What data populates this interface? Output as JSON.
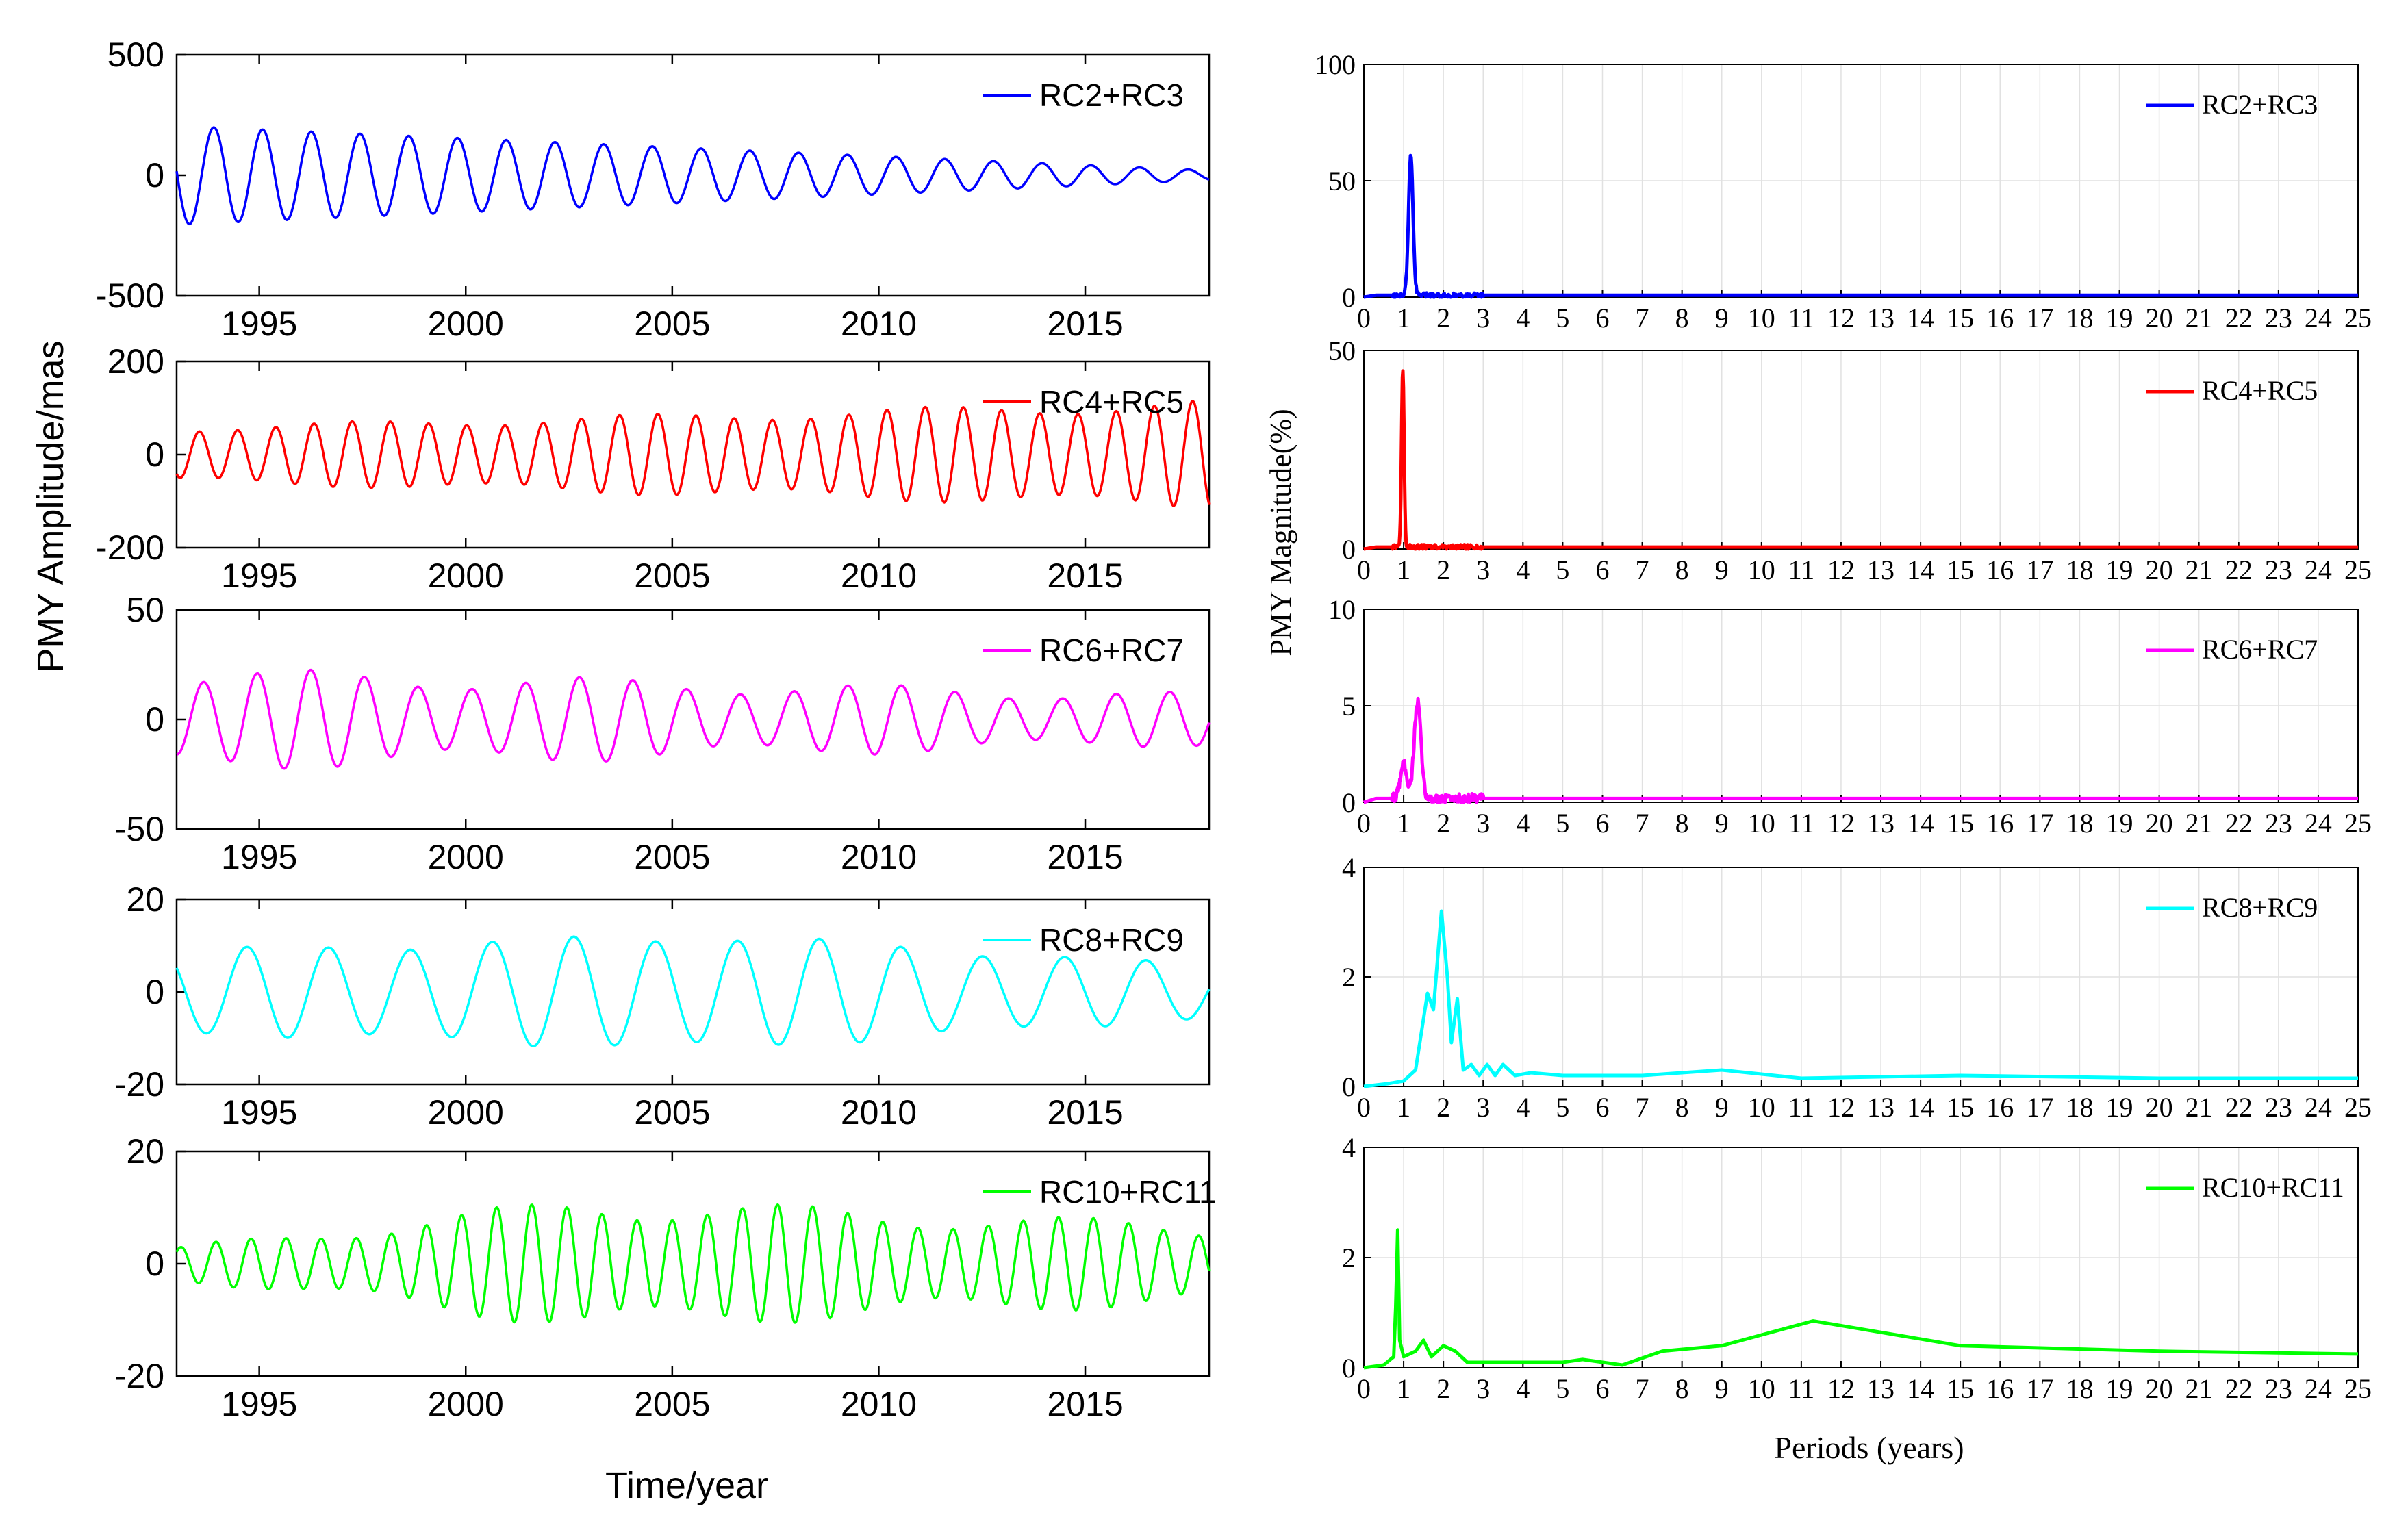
{
  "figure": {
    "left_ylabel": "PMY Amplitude/mas",
    "left_xlabel": "Time/year",
    "right_ylabel": "PMY Magnitude(%)",
    "right_xlabel": "Periods (years)"
  },
  "chart_data": [
    {
      "type": "line",
      "name": "RC2+RC3 time series",
      "series": [
        {
          "name": "RC2+RC3",
          "color": "#0000ff"
        }
      ],
      "xlim": [
        1993,
        2018
      ],
      "ylim": [
        -500,
        500
      ],
      "yticks": [
        -500,
        0,
        500
      ],
      "xticks": [
        1995,
        2000,
        2005,
        2010,
        2015
      ],
      "signal": {
        "period_years": 1.18,
        "amp_start": 205,
        "amp_end": 20,
        "amp_peak_year": 1995.2,
        "phase_year": 1993.9,
        "sign": 1,
        "noise": 0
      },
      "xlabel": "",
      "ylabel": "",
      "legend": "top-right"
    },
    {
      "type": "line",
      "name": "RC4+RC5 time series",
      "series": [
        {
          "name": "RC4+RC5",
          "color": "#ff0000"
        }
      ],
      "xlim": [
        1993,
        2018
      ],
      "ylim": [
        -200,
        200
      ],
      "yticks": [
        -200,
        0,
        200
      ],
      "xticks": [
        1995,
        2000,
        2005,
        2010,
        2015
      ],
      "signal": {
        "period_years": 0.925,
        "amp_start": 55,
        "amp_end": 105,
        "phase_year": 1993.55,
        "sign": 1,
        "noise": 0.2
      },
      "xlabel": "",
      "ylabel": "",
      "legend": "top-right"
    },
    {
      "type": "line",
      "name": "RC6+RC7 time series",
      "series": [
        {
          "name": "RC6+RC7",
          "color": "#ff00ff"
        }
      ],
      "xlim": [
        1993,
        2018
      ],
      "ylim": [
        -50,
        50
      ],
      "yticks": [
        -50,
        0,
        50
      ],
      "xticks": [
        1995,
        2000,
        2005,
        2010,
        2015
      ],
      "signal": {
        "period_years": 1.3,
        "amp_start": 20,
        "amp_end": 10,
        "phase_year": 1993.65,
        "sign": 1,
        "noise": 0.35
      },
      "xlabel": "",
      "ylabel": "",
      "legend": "top-right"
    },
    {
      "type": "line",
      "name": "RC8+RC9 time series",
      "series": [
        {
          "name": "RC8+RC9",
          "color": "#00ffff"
        }
      ],
      "xlim": [
        1993,
        2018
      ],
      "ylim": [
        -20,
        20
      ],
      "yticks": [
        -20,
        0,
        20
      ],
      "xticks": [
        1995,
        2000,
        2005,
        2010,
        2015
      ],
      "signal": {
        "period_years": 1.98,
        "amp_start": 8.5,
        "amp_end": 5.5,
        "amp_peak_year": 2006,
        "amp_peak": 12,
        "phase_year": 1994.7,
        "sign": 1,
        "noise": 0.15
      },
      "xlabel": "",
      "ylabel": "",
      "legend": "top-right"
    },
    {
      "type": "line",
      "name": "RC10+RC11 time series",
      "series": [
        {
          "name": "RC10+RC11",
          "color": "#00ff00"
        }
      ],
      "xlim": [
        1993,
        2018
      ],
      "ylim": [
        -20,
        20
      ],
      "yticks": [
        -20,
        0,
        20
      ],
      "xticks": [
        1995,
        2000,
        2005,
        2010,
        2015
      ],
      "signal": {
        "period_years": 0.85,
        "amp_start": 2.5,
        "amp_end": 6,
        "amp_peak_year": 2003,
        "amp_peak": 10,
        "phase_year": 1993.1,
        "sign": 1,
        "noise": 0.35
      },
      "xlabel": "Time/year",
      "ylabel": "",
      "legend": "top-right"
    },
    {
      "type": "line",
      "name": "RC2+RC3 spectrum",
      "series": [
        {
          "name": "RC2+RC3",
          "color": "#0000ff"
        }
      ],
      "xlim": [
        0,
        25
      ],
      "ylim": [
        0,
        100
      ],
      "yticks": [
        0,
        50,
        100
      ],
      "xticks": [
        0,
        1,
        2,
        3,
        4,
        5,
        6,
        7,
        8,
        9,
        10,
        11,
        12,
        13,
        14,
        15,
        16,
        17,
        18,
        19,
        20,
        21,
        22,
        23,
        24,
        25
      ],
      "peaks": [
        {
          "x": 1.18,
          "y": 60,
          "width": 0.08
        }
      ],
      "baseline": 0.8,
      "xlabel": "",
      "ylabel": "",
      "legend": "top-right"
    },
    {
      "type": "line",
      "name": "RC4+RC5 spectrum",
      "series": [
        {
          "name": "RC4+RC5",
          "color": "#ff0000"
        }
      ],
      "xlim": [
        0,
        25
      ],
      "ylim": [
        0,
        50
      ],
      "yticks": [
        0,
        50
      ],
      "xticks": [
        0,
        1,
        2,
        3,
        4,
        5,
        6,
        7,
        8,
        9,
        10,
        11,
        12,
        13,
        14,
        15,
        16,
        17,
        18,
        19,
        20,
        21,
        22,
        23,
        24,
        25
      ],
      "peaks": [
        {
          "x": 0.98,
          "y": 45,
          "width": 0.045
        }
      ],
      "baseline": 0.5,
      "xlabel": "",
      "ylabel": "",
      "legend": "top-right"
    },
    {
      "type": "line",
      "name": "RC6+RC7 spectrum",
      "series": [
        {
          "name": "RC6+RC7",
          "color": "#ff00ff"
        }
      ],
      "xlim": [
        0,
        25
      ],
      "ylim": [
        0,
        10
      ],
      "yticks": [
        0,
        5,
        10
      ],
      "xticks": [
        0,
        1,
        2,
        3,
        4,
        5,
        6,
        7,
        8,
        9,
        10,
        11,
        12,
        13,
        14,
        15,
        16,
        17,
        18,
        19,
        20,
        21,
        22,
        23,
        24,
        25
      ],
      "peaks": [
        {
          "x": 1.35,
          "y": 5,
          "width": 0.12
        },
        {
          "x": 1.0,
          "y": 1.8,
          "width": 0.12
        }
      ],
      "baseline": 0.2,
      "xlabel": "",
      "ylabel": "",
      "legend": "top-right"
    },
    {
      "type": "line",
      "name": "RC8+RC9 spectrum",
      "series": [
        {
          "name": "RC8+RC9",
          "color": "#00ffff"
        }
      ],
      "xlim": [
        0,
        25
      ],
      "ylim": [
        0,
        4
      ],
      "yticks": [
        0,
        2,
        4
      ],
      "xticks": [
        0,
        1,
        2,
        3,
        4,
        5,
        6,
        7,
        8,
        9,
        10,
        11,
        12,
        13,
        14,
        15,
        16,
        17,
        18,
        19,
        20,
        21,
        22,
        23,
        24,
        25
      ],
      "points": [
        [
          0,
          0
        ],
        [
          0.6,
          0.05
        ],
        [
          1.0,
          0.1
        ],
        [
          1.3,
          0.3
        ],
        [
          1.6,
          1.7
        ],
        [
          1.75,
          1.4
        ],
        [
          1.95,
          3.2
        ],
        [
          2.1,
          2.0
        ],
        [
          2.2,
          0.8
        ],
        [
          2.35,
          1.6
        ],
        [
          2.5,
          0.3
        ],
        [
          2.7,
          0.4
        ],
        [
          2.9,
          0.2
        ],
        [
          3.1,
          0.4
        ],
        [
          3.3,
          0.2
        ],
        [
          3.5,
          0.4
        ],
        [
          3.8,
          0.2
        ],
        [
          4.2,
          0.25
        ],
        [
          5,
          0.2
        ],
        [
          7,
          0.2
        ],
        [
          9,
          0.3
        ],
        [
          11,
          0.15
        ],
        [
          15,
          0.2
        ],
        [
          20,
          0.15
        ],
        [
          25,
          0.15
        ]
      ],
      "xlabel": "",
      "ylabel": "",
      "legend": "top-right"
    },
    {
      "type": "line",
      "name": "RC10+RC11 spectrum",
      "series": [
        {
          "name": "RC10+RC11",
          "color": "#00ff00"
        }
      ],
      "xlim": [
        0,
        25
      ],
      "ylim": [
        0,
        4
      ],
      "yticks": [
        0,
        2,
        4
      ],
      "xticks": [
        0,
        1,
        2,
        3,
        4,
        5,
        6,
        7,
        8,
        9,
        10,
        11,
        12,
        13,
        14,
        15,
        16,
        17,
        18,
        19,
        20,
        21,
        22,
        23,
        24,
        25
      ],
      "points": [
        [
          0,
          0
        ],
        [
          0.5,
          0.05
        ],
        [
          0.75,
          0.2
        ],
        [
          0.8,
          1.1
        ],
        [
          0.85,
          2.5
        ],
        [
          0.9,
          0.5
        ],
        [
          1.0,
          0.2
        ],
        [
          1.3,
          0.3
        ],
        [
          1.5,
          0.5
        ],
        [
          1.7,
          0.2
        ],
        [
          2.0,
          0.4
        ],
        [
          2.3,
          0.3
        ],
        [
          2.6,
          0.1
        ],
        [
          3,
          0.1
        ],
        [
          4,
          0.1
        ],
        [
          5,
          0.1
        ],
        [
          5.5,
          0.15
        ],
        [
          6.5,
          0.05
        ],
        [
          7.5,
          0.3
        ],
        [
          9,
          0.4
        ],
        [
          11.3,
          0.85
        ],
        [
          15,
          0.4
        ],
        [
          20,
          0.3
        ],
        [
          25,
          0.25
        ]
      ],
      "xlabel": "Periods (years)",
      "ylabel": "",
      "legend": "top-right"
    }
  ]
}
